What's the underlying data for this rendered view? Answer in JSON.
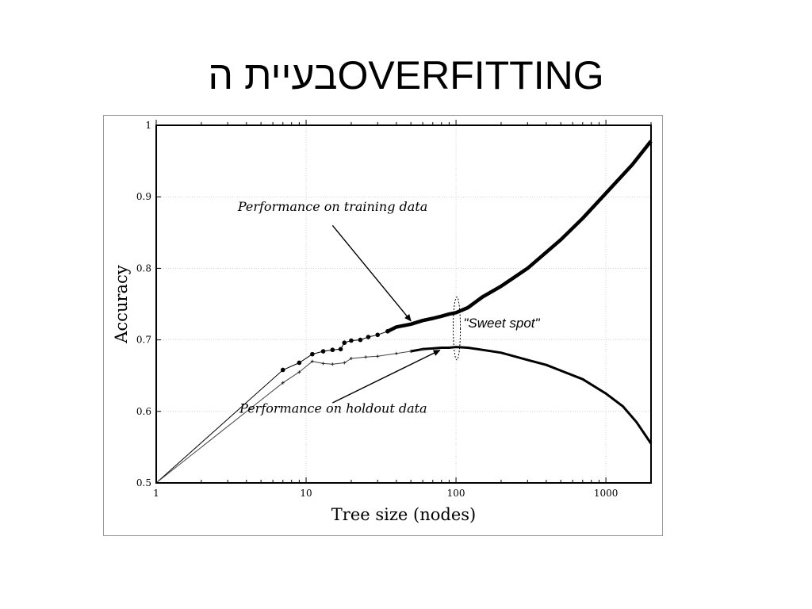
{
  "slide": {
    "title": "בעיית הOVERFITTING"
  },
  "chart_data": {
    "type": "line",
    "title": "",
    "xlabel": "Tree size (nodes)",
    "ylabel": "Accuracy",
    "xscale": "log",
    "xlim": [
      1,
      2000
    ],
    "ylim": [
      0.5,
      1.0
    ],
    "grid": true,
    "x_ticks": [
      "1",
      "10",
      "100",
      "1000"
    ],
    "y_ticks": [
      "0.5",
      "0.6",
      "0.7",
      "0.8",
      "0.9",
      "1"
    ],
    "series": [
      {
        "name": "Performance on training data",
        "color": "#000000",
        "points": [
          [
            1,
            0.5
          ],
          [
            7,
            0.658
          ],
          [
            9,
            0.668
          ],
          [
            11,
            0.68
          ],
          [
            13,
            0.684
          ],
          [
            15,
            0.686
          ],
          [
            17,
            0.687
          ],
          [
            18,
            0.696
          ],
          [
            20,
            0.699
          ],
          [
            23,
            0.7
          ],
          [
            26,
            0.704
          ],
          [
            30,
            0.707
          ],
          [
            35,
            0.712
          ],
          [
            40,
            0.718
          ],
          [
            50,
            0.722
          ],
          [
            60,
            0.727
          ],
          [
            70,
            0.73
          ],
          [
            80,
            0.733
          ],
          [
            90,
            0.736
          ],
          [
            100,
            0.738
          ],
          [
            120,
            0.745
          ],
          [
            150,
            0.76
          ],
          [
            200,
            0.775
          ],
          [
            300,
            0.8
          ],
          [
            500,
            0.84
          ],
          [
            700,
            0.87
          ],
          [
            1000,
            0.905
          ],
          [
            1500,
            0.945
          ],
          [
            2000,
            0.978
          ]
        ]
      },
      {
        "name": "Performance on holdout data",
        "color": "#000000",
        "points": [
          [
            1,
            0.5
          ],
          [
            7,
            0.64
          ],
          [
            9,
            0.655
          ],
          [
            11,
            0.67
          ],
          [
            13,
            0.667
          ],
          [
            15,
            0.666
          ],
          [
            18,
            0.668
          ],
          [
            20,
            0.674
          ],
          [
            25,
            0.676
          ],
          [
            30,
            0.677
          ],
          [
            40,
            0.681
          ],
          [
            50,
            0.684
          ],
          [
            60,
            0.687
          ],
          [
            70,
            0.688
          ],
          [
            80,
            0.689
          ],
          [
            90,
            0.689
          ],
          [
            100,
            0.69
          ],
          [
            120,
            0.689
          ],
          [
            150,
            0.686
          ],
          [
            200,
            0.682
          ],
          [
            300,
            0.672
          ],
          [
            400,
            0.665
          ],
          [
            500,
            0.657
          ],
          [
            700,
            0.645
          ],
          [
            1000,
            0.625
          ],
          [
            1300,
            0.607
          ],
          [
            1600,
            0.585
          ],
          [
            2000,
            0.555
          ]
        ]
      }
    ],
    "annotations": {
      "training_label": "Performance on training data",
      "holdout_label": "Performance on holdout data",
      "sweet_spot_label": "\"Sweet spot\""
    },
    "sweet_spot_x": 100
  }
}
